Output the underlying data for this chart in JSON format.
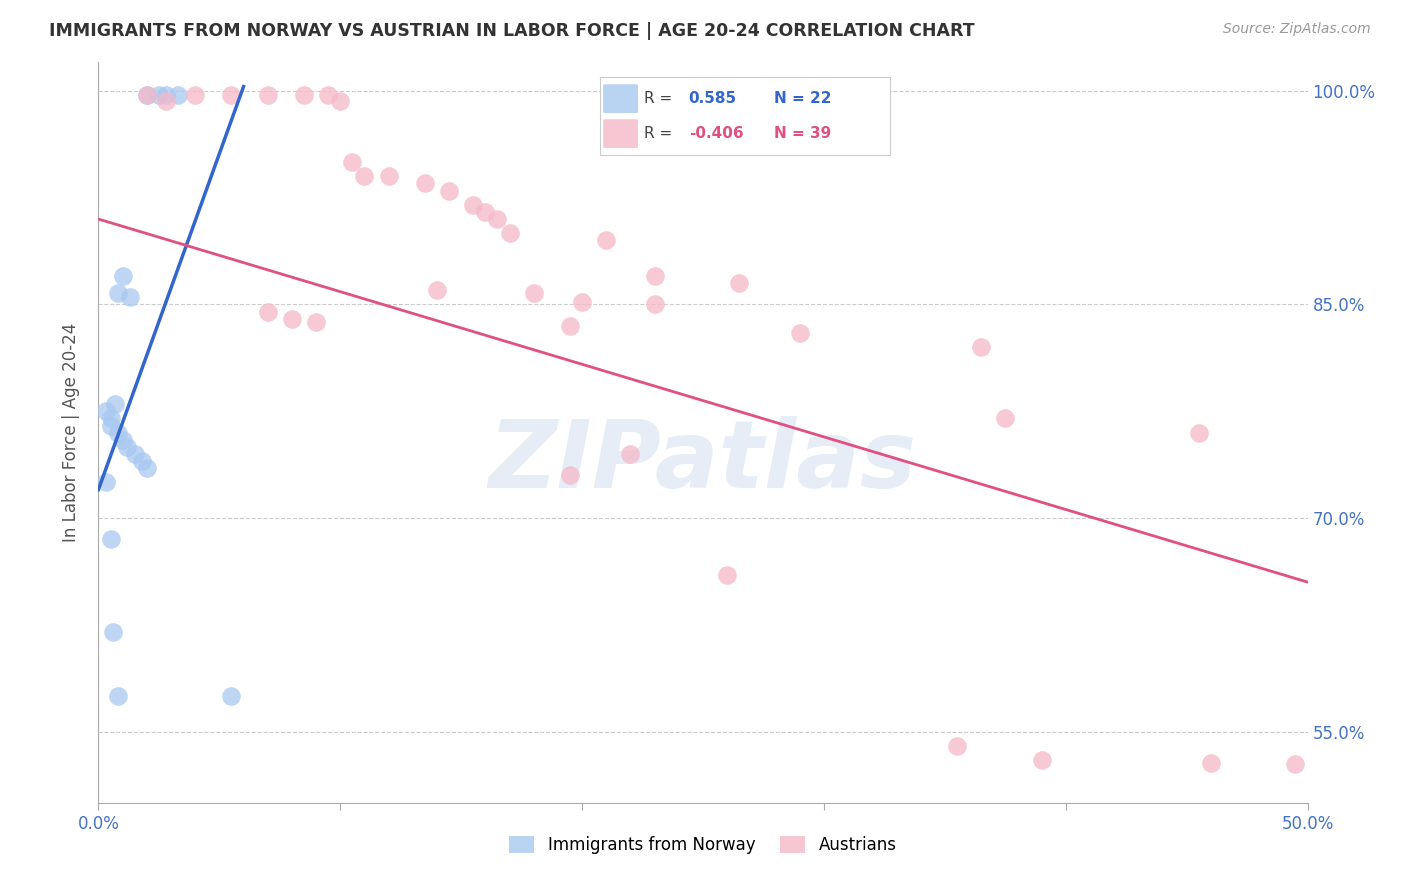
{
  "title": "IMMIGRANTS FROM NORWAY VS AUSTRIAN IN LABOR FORCE | AGE 20-24 CORRELATION CHART",
  "source": "Source: ZipAtlas.com",
  "ylabel": "In Labor Force | Age 20-24",
  "norway_R": 0.585,
  "norway_N": 22,
  "austrian_R": -0.406,
  "austrian_N": 39,
  "norway_color": "#a8c8f0",
  "austrian_color": "#f5b8c8",
  "norway_line_color": "#3366cc",
  "austrian_line_color": "#e05080",
  "norway_scatter_x": [
    0.02,
    0.025,
    0.028,
    0.033,
    0.01,
    0.008,
    0.013,
    0.007,
    0.003,
    0.005,
    0.005,
    0.008,
    0.01,
    0.012,
    0.015,
    0.018,
    0.02,
    0.003,
    0.005,
    0.006,
    0.008,
    0.055
  ],
  "norway_scatter_y": [
    0.997,
    0.997,
    0.997,
    0.997,
    0.87,
    0.858,
    0.855,
    0.78,
    0.775,
    0.77,
    0.765,
    0.76,
    0.755,
    0.75,
    0.745,
    0.74,
    0.735,
    0.725,
    0.685,
    0.62,
    0.575,
    0.575
  ],
  "austrian_scatter_x": [
    0.02,
    0.028,
    0.04,
    0.055,
    0.07,
    0.085,
    0.095,
    0.1,
    0.105,
    0.11,
    0.12,
    0.135,
    0.145,
    0.155,
    0.16,
    0.165,
    0.17,
    0.21,
    0.23,
    0.265,
    0.14,
    0.18,
    0.2,
    0.23,
    0.07,
    0.08,
    0.09,
    0.195,
    0.29,
    0.365,
    0.375,
    0.455,
    0.22,
    0.195,
    0.26,
    0.355,
    0.39,
    0.46,
    0.495
  ],
  "austrian_scatter_y": [
    0.997,
    0.993,
    0.997,
    0.997,
    0.997,
    0.997,
    0.997,
    0.993,
    0.95,
    0.94,
    0.94,
    0.935,
    0.93,
    0.92,
    0.915,
    0.91,
    0.9,
    0.895,
    0.87,
    0.865,
    0.86,
    0.858,
    0.852,
    0.85,
    0.845,
    0.84,
    0.838,
    0.835,
    0.83,
    0.82,
    0.77,
    0.76,
    0.745,
    0.73,
    0.66,
    0.54,
    0.53,
    0.528,
    0.527
  ],
  "norway_trendline_x": [
    0.0,
    0.06
  ],
  "norway_trendline_y": [
    0.72,
    1.003
  ],
  "austrian_trendline_x": [
    0.0,
    0.5
  ],
  "austrian_trendline_y": [
    0.91,
    0.655
  ],
  "watermark_text": "ZIPatlas",
  "background_color": "#ffffff",
  "grid_color": "#cccccc",
  "ytick_vals": [
    0.55,
    0.7,
    0.85,
    1.0
  ],
  "ytick_labels": [
    "55.0%",
    "70.0%",
    "85.0%",
    "100.0%"
  ],
  "xlim": [
    0.0,
    0.5
  ],
  "ylim": [
    0.5,
    1.02
  ]
}
